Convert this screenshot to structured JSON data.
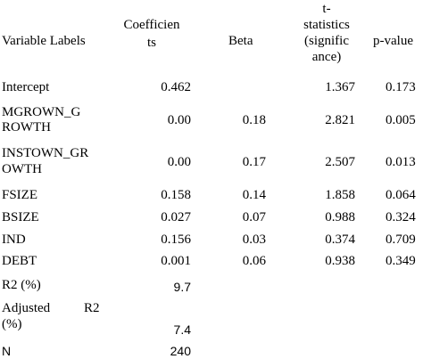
{
  "table": {
    "headers": {
      "variable": "Variable Labels",
      "coef_line1": "Coefficien",
      "coef_line2": "ts",
      "beta": "Beta",
      "tstat_line1": "t-",
      "tstat_line2": "statistics",
      "tstat_line3": "(signific",
      "tstat_line4": "ance)",
      "pvalue": "p-value"
    },
    "rows": [
      {
        "label": [
          "Intercept"
        ],
        "coef": "0.462",
        "beta": "",
        "t": "1.367",
        "p": "0.173"
      },
      {
        "label": [
          "MGROWN_G",
          "ROWTH"
        ],
        "coef": "0.00",
        "beta": "0.18",
        "t": "2.821",
        "p": "0.005"
      },
      {
        "label": [
          "INSTOWN_GR",
          "OWTH"
        ],
        "coef": "0.00",
        "beta": "0.17",
        "t": "2.507",
        "p": "0.013"
      },
      {
        "label": [
          "FSIZE"
        ],
        "coef": "0.158",
        "beta": "0.14",
        "t": "1.858",
        "p": "0.064"
      },
      {
        "label": [
          "BSIZE"
        ],
        "coef": "0.027",
        "beta": "0.07",
        "t": "0.988",
        "p": "0.324"
      },
      {
        "label": [
          "IND"
        ],
        "coef": "0.156",
        "beta": "0.03",
        "t": "0.374",
        "p": "0.709"
      },
      {
        "label": [
          "DEBT"
        ],
        "coef": "0.001",
        "beta": "0.06",
        "t": "0.938",
        "p": "0.349"
      }
    ],
    "stats": {
      "r2_label": "R2 (%)",
      "r2_value": "9.7",
      "adj_label_word1": "Adjusted",
      "adj_label_word2": "R2",
      "adj_label_line2": "(%)",
      "adj_value": "7.4",
      "n_label": "N",
      "n_value": "240"
    }
  }
}
